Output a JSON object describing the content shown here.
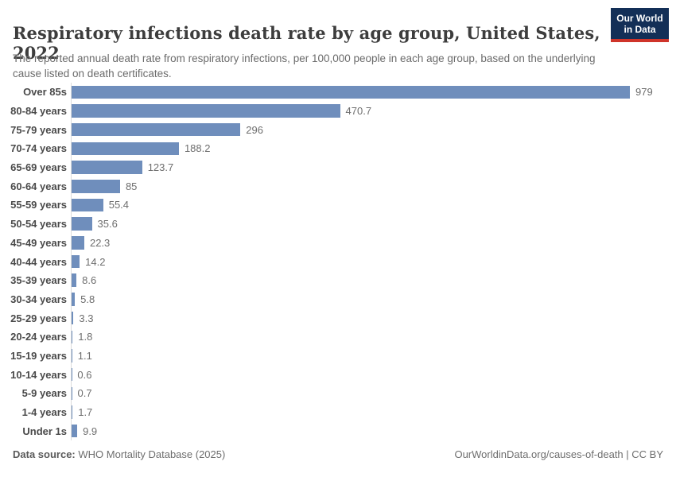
{
  "header": {
    "title": "Respiratory infections death rate by age group, United States, 2022",
    "subtitle": "The reported annual death rate from respiratory infections, per 100,000 people in each age group, based on the underlying cause listed on death certificates.",
    "logo": {
      "line1": "Our World",
      "line2": "in Data"
    }
  },
  "chart_data": {
    "type": "bar",
    "orientation": "horizontal",
    "title": "Respiratory infections death rate by age group, United States, 2022",
    "categories": [
      "Over 85s",
      "80-84 years",
      "75-79 years",
      "70-74 years",
      "65-69 years",
      "60-64 years",
      "55-59 years",
      "50-54 years",
      "45-49 years",
      "40-44 years",
      "35-39 years",
      "30-34 years",
      "25-29 years",
      "20-24 years",
      "15-19 years",
      "10-14 years",
      "5-9 years",
      "1-4 years",
      "Under 1s"
    ],
    "values": [
      979,
      470.7,
      296,
      188.2,
      123.7,
      85,
      55.4,
      35.6,
      22.3,
      14.2,
      8.6,
      5.8,
      3.3,
      1.8,
      1.1,
      0.6,
      0.7,
      1.7,
      9.9
    ],
    "value_labels": [
      "979",
      "470.7",
      "296",
      "188.2",
      "123.7",
      "85",
      "55.4",
      "35.6",
      "22.3",
      "14.2",
      "8.6",
      "5.8",
      "3.3",
      "1.8",
      "1.1",
      "0.6",
      "0.7",
      "1.7",
      "9.9"
    ],
    "xlim": [
      0,
      979
    ],
    "grid": false,
    "legend": false,
    "bar_color": "#6f8ebc",
    "axis_line_color": "#dcdcdc"
  },
  "footer": {
    "source_label": "Data source:",
    "source_value": "WHO Mortality Database (2025)",
    "credit": "OurWorldinData.org/causes-of-death | CC BY"
  },
  "colors": {
    "logo_navy": "#132f57",
    "logo_red": "#cf342a",
    "bar_blue": "#6f8ebc",
    "title_text": "#3d3d3d",
    "muted_text": "#6b6b6b"
  }
}
